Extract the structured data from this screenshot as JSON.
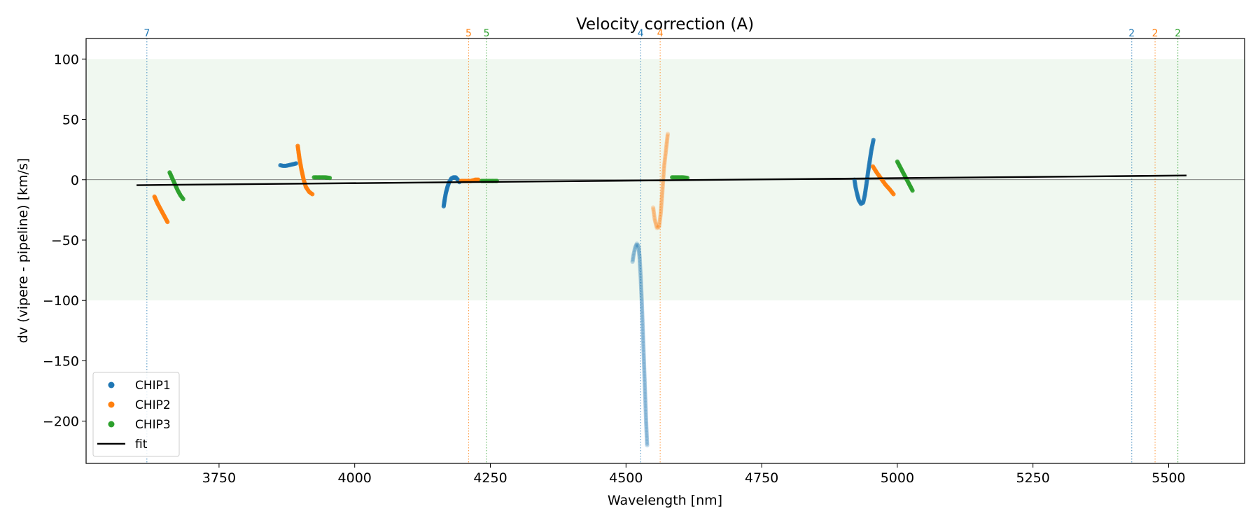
{
  "chart_data": {
    "type": "scatter",
    "title": "Velocity correction (A)",
    "xlabel": "Wavelength [nm]",
    "ylabel": "dv (vipere - pipeline) [km/s]",
    "xlim": [
      3505,
      5640
    ],
    "ylim": [
      -235,
      117
    ],
    "x_ticks": [
      3750,
      4000,
      4250,
      4500,
      4750,
      5000,
      5250,
      5500
    ],
    "y_ticks": [
      100,
      50,
      0,
      -50,
      -100,
      -150,
      -200
    ],
    "x_tick_labels": [
      "3750",
      "4000",
      "4250",
      "4500",
      "4750",
      "5000",
      "5250",
      "5500"
    ],
    "y_tick_labels": [
      "100",
      "50",
      "0",
      "−50",
      "−100",
      "−150",
      "−200"
    ],
    "band": {
      "y_min": -100,
      "y_max": 100,
      "color": "#2ca02c",
      "description": "tolerance band"
    },
    "zero_line": 0,
    "legend": {
      "position": "lower-left",
      "entries": [
        {
          "label": "CHIP1",
          "kind": "marker",
          "color": "#1f77b4"
        },
        {
          "label": "CHIP2",
          "kind": "marker",
          "color": "#ff7f0e"
        },
        {
          "label": "CHIP3",
          "kind": "marker",
          "color": "#2ca02c"
        },
        {
          "label": "fit",
          "kind": "line",
          "color": "#000000"
        }
      ]
    },
    "order_markers": [
      {
        "x": 3617,
        "label": "7",
        "color": "#1f77b4"
      },
      {
        "x": 4210,
        "label": "5",
        "color": "#ff7f0e"
      },
      {
        "x": 4243,
        "label": "5",
        "color": "#2ca02c"
      },
      {
        "x": 4527,
        "label": "4",
        "color": "#1f77b4"
      },
      {
        "x": 4563,
        "label": "4",
        "color": "#ff7f0e"
      },
      {
        "x": 5432,
        "label": "2",
        "color": "#1f77b4"
      },
      {
        "x": 5475,
        "label": "2",
        "color": "#ff7f0e"
      },
      {
        "x": 5517,
        "label": "2",
        "color": "#2ca02c"
      }
    ],
    "series": [
      {
        "name": "CHIP1",
        "color": "#1f77b4",
        "segments": [
          {
            "opacity": 0.85,
            "points": [
              [
                3863,
                12
              ],
              [
                3868,
                11.5
              ],
              [
                3873,
                11.5
              ],
              [
                3878,
                12
              ],
              [
                3883,
                12.5
              ],
              [
                3888,
                13
              ],
              [
                3892,
                13.5
              ]
            ]
          },
          {
            "opacity": 0.85,
            "points": [
              [
                4164,
                -22
              ],
              [
                4166,
                -16
              ],
              [
                4168,
                -11
              ],
              [
                4171,
                -6
              ],
              [
                4174,
                -2
              ],
              [
                4178,
                1
              ],
              [
                4182,
                2
              ],
              [
                4186,
                2
              ],
              [
                4190,
                0
              ],
              [
                4193,
                -2
              ]
            ]
          },
          {
            "opacity": 0.25,
            "points": [
              [
                4512,
                -68
              ],
              [
                4514,
                -62
              ],
              [
                4517,
                -56
              ],
              [
                4520,
                -53
              ],
              [
                4523,
                -55
              ],
              [
                4525,
                -64
              ],
              [
                4527,
                -80
              ],
              [
                4529,
                -100
              ],
              [
                4531,
                -125
              ],
              [
                4533,
                -150
              ],
              [
                4535,
                -175
              ],
              [
                4537,
                -200
              ],
              [
                4539,
                -220
              ]
            ]
          },
          {
            "opacity": 0.75,
            "points": [
              [
                4921,
                0
              ],
              [
                4923,
                -6
              ],
              [
                4926,
                -12
              ],
              [
                4929,
                -17
              ],
              [
                4933,
                -20
              ],
              [
                4937,
                -19
              ],
              [
                4940,
                -13
              ],
              [
                4943,
                -4
              ],
              [
                4946,
                6
              ],
              [
                4949,
                15
              ],
              [
                4952,
                24
              ],
              [
                4956,
                33
              ]
            ]
          }
        ]
      },
      {
        "name": "CHIP2",
        "color": "#ff7f0e",
        "segments": [
          {
            "opacity": 0.9,
            "points": [
              [
                3631,
                -14
              ],
              [
                3637,
                -20
              ],
              [
                3643,
                -25
              ],
              [
                3649,
                -30
              ],
              [
                3655,
                -35
              ]
            ]
          },
          {
            "opacity": 0.9,
            "points": [
              [
                3895,
                28
              ],
              [
                3898,
                18
              ],
              [
                3902,
                8
              ],
              [
                3906,
                0
              ],
              [
                3910,
                -6
              ],
              [
                3916,
                -10
              ],
              [
                3922,
                -12
              ]
            ]
          },
          {
            "opacity": 0.9,
            "points": [
              [
                4196,
                -1
              ],
              [
                4205,
                -1
              ],
              [
                4214,
                -1
              ],
              [
                4222,
                0
              ],
              [
                4228,
                0
              ]
            ]
          },
          {
            "opacity": 0.25,
            "points": [
              [
                4550,
                -23
              ],
              [
                4553,
                -33
              ],
              [
                4557,
                -40
              ],
              [
                4561,
                -39
              ],
              [
                4564,
                -28
              ],
              [
                4567,
                -10
              ],
              [
                4570,
                10
              ],
              [
                4574,
                26
              ],
              [
                4577,
                38
              ]
            ]
          },
          {
            "opacity": 0.9,
            "points": [
              [
                4955,
                11
              ],
              [
                4962,
                6
              ],
              [
                4970,
                1
              ],
              [
                4978,
                -4
              ],
              [
                4986,
                -8
              ],
              [
                4993,
                -12
              ]
            ]
          }
        ]
      },
      {
        "name": "CHIP3",
        "color": "#2ca02c",
        "segments": [
          {
            "opacity": 0.9,
            "points": [
              [
                3659,
                6
              ],
              [
                3664,
                1
              ],
              [
                3669,
                -4
              ],
              [
                3674,
                -9
              ],
              [
                3679,
                -13
              ],
              [
                3684,
                -16
              ]
            ]
          },
          {
            "opacity": 0.9,
            "points": [
              [
                3925,
                2
              ],
              [
                3935,
                2
              ],
              [
                3945,
                2
              ],
              [
                3954,
                1.5
              ]
            ]
          },
          {
            "opacity": 0.9,
            "points": [
              [
                4234,
                -1
              ],
              [
                4244,
                -1
              ],
              [
                4254,
                -1
              ],
              [
                4262,
                -1
              ]
            ]
          },
          {
            "opacity": 0.9,
            "points": [
              [
                4585,
                2
              ],
              [
                4595,
                2
              ],
              [
                4605,
                2
              ],
              [
                4613,
                1.5
              ]
            ]
          },
          {
            "opacity": 0.9,
            "points": [
              [
                5000,
                15
              ],
              [
                5007,
                9
              ],
              [
                5014,
                3
              ],
              [
                5021,
                -3
              ],
              [
                5028,
                -9
              ]
            ]
          }
        ]
      }
    ],
    "fit": {
      "name": "fit",
      "color": "#000000",
      "points": [
        [
          3598,
          -4.5
        ],
        [
          5533,
          3.5
        ]
      ]
    }
  }
}
